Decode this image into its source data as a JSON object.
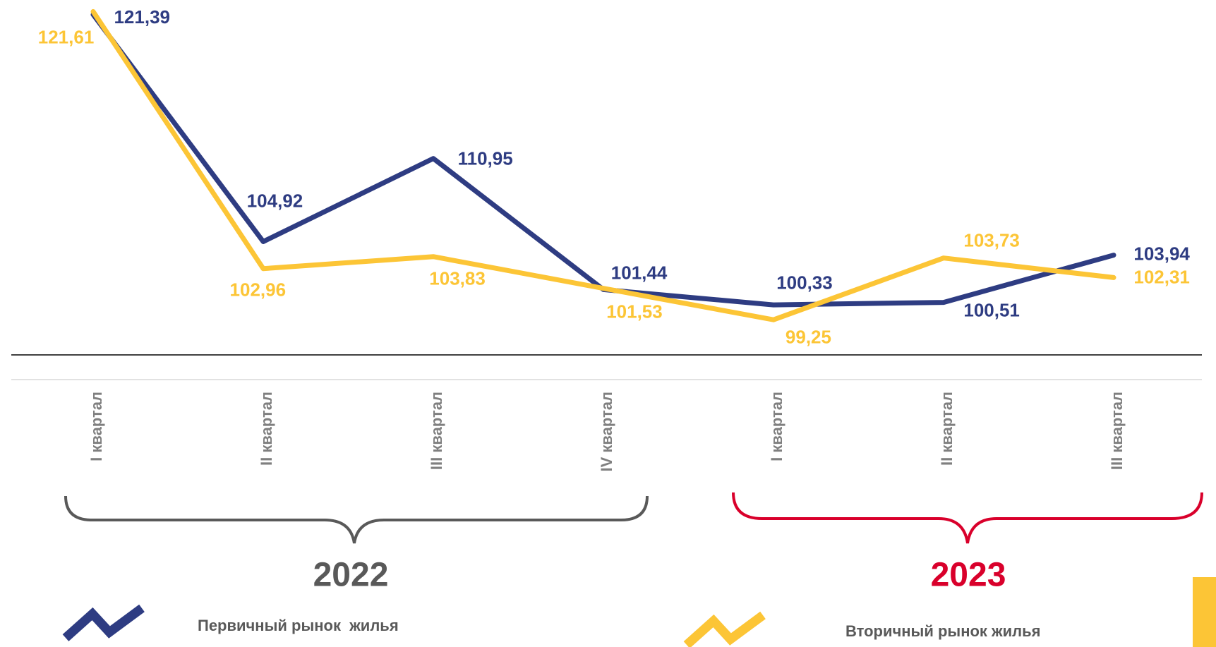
{
  "chart_data": {
    "type": "line",
    "categories": [
      "I квартал",
      "II квартал",
      "III квартал",
      "IV квартал",
      "I квартал",
      "II квартал",
      "III квартал"
    ],
    "groups": [
      {
        "label": "2022",
        "color": "#595959"
      },
      {
        "label": "2023",
        "color": "#d9002b"
      }
    ],
    "series": [
      {
        "name": "Первичный рынок  жилья",
        "color": "#2e3c82",
        "values": [
          121.39,
          104.92,
          110.95,
          101.44,
          100.33,
          100.51,
          103.94
        ],
        "value_labels": [
          "121,39",
          "104,92",
          "110,95",
          "101,44",
          "100,33",
          "100,51",
          "103,94"
        ]
      },
      {
        "name": "Вторичный рынок жилья",
        "color": "#fcc536",
        "values": [
          121.61,
          102.96,
          103.83,
          101.53,
          99.25,
          103.73,
          102.31
        ],
        "value_labels": [
          "121,61",
          "102,96",
          "103,83",
          "101,53",
          "99,25",
          "103,73",
          "102,31"
        ]
      }
    ],
    "ylim": [
      96.7,
      122.45
    ]
  }
}
